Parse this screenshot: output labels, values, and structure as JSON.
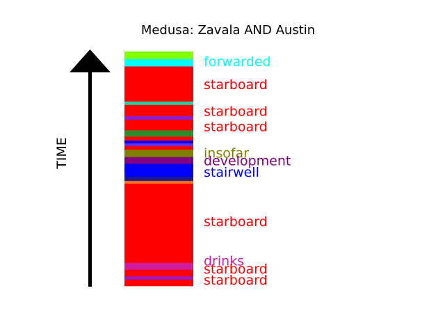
{
  "chart_data": {
    "type": "stacked-timeline-bar",
    "title": "Medusa: Zavala AND Austin",
    "axis_label": "TIME",
    "axis_direction": "up",
    "segments_bottom_to_top": [
      {
        "color": "#ff0000",
        "size": 2.4
      },
      {
        "color": "#8b1fd6",
        "size": 1.0
      },
      {
        "color": "#ff0000",
        "size": 2.4
      },
      {
        "color": "#d01ca0",
        "size": 2.4
      },
      {
        "color": "#ff0000",
        "size": 28.0
      },
      {
        "color": "#ff6b1a",
        "size": 1.0
      },
      {
        "color": "#1a1a8a",
        "size": 1.4
      },
      {
        "color": "#0000ff",
        "size": 4.6
      },
      {
        "color": "#800080",
        "size": 2.4
      },
      {
        "color": "#808000",
        "size": 2.6
      },
      {
        "color": "#ff0000",
        "size": 1.2
      },
      {
        "color": "#6a2ee0",
        "size": 1.0
      },
      {
        "color": "#0000ff",
        "size": 1.0
      },
      {
        "color": "#ff0000",
        "size": 1.4
      },
      {
        "color": "#2e8b2e",
        "size": 2.2
      },
      {
        "color": "#ff0000",
        "size": 3.8
      },
      {
        "color": "#8b1fd6",
        "size": 1.2
      },
      {
        "color": "#ff0000",
        "size": 4.0
      },
      {
        "color": "#20d0a0",
        "size": 1.2
      },
      {
        "color": "#ff0000",
        "size": 12.4
      },
      {
        "color": "#00ffff",
        "size": 2.6
      },
      {
        "color": "#7fff00",
        "size": 2.6
      }
    ],
    "labels": [
      {
        "text": "forwarded",
        "color": "#00ffff",
        "pos": 95.8
      },
      {
        "text": "starboard",
        "color": "#ff0000",
        "pos": 86.0
      },
      {
        "text": "starboard",
        "color": "#ff0000",
        "pos": 74.6
      },
      {
        "text": "starboard",
        "color": "#ff0000",
        "pos": 68.1
      },
      {
        "text": "insofar",
        "color": "#808000",
        "pos": 56.8
      },
      {
        "text": "development",
        "color": "#800080",
        "pos": 53.5
      },
      {
        "text": "stairwell",
        "color": "#0000ff",
        "pos": 48.7
      },
      {
        "text": "starboard",
        "color": "#ff0000",
        "pos": 27.6
      },
      {
        "text": "drinks",
        "color": "#d01ca0",
        "pos": 10.8
      },
      {
        "text": "starboard",
        "color": "#ff0000",
        "pos": 7.4
      },
      {
        "text": "starboard",
        "color": "#ff0000",
        "pos": 2.7
      }
    ]
  }
}
